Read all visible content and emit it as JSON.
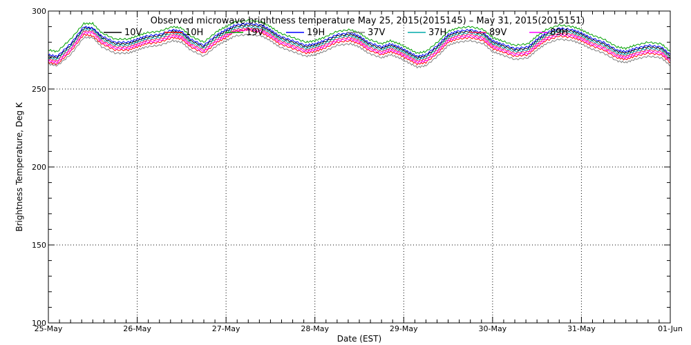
{
  "chart_data": {
    "type": "line",
    "title": "Observed microwave brightness temperature May 25, 2015(2015145) – May 31, 2015(2015151)",
    "xlabel": "Date (EST)",
    "ylabel": "Brightness Temperature, Deg K",
    "ylim": [
      100,
      300
    ],
    "y_ticks": [
      100,
      150,
      200,
      250,
      300
    ],
    "xlim": [
      "2015-05-25",
      "2015-06-01"
    ],
    "x_ticks": [
      "25-May",
      "26-May",
      "27-May",
      "28-May",
      "29-May",
      "30-May",
      "31-May",
      "01-Jun"
    ],
    "grid": true,
    "legend_position": "top",
    "x": [
      0.0,
      0.1,
      0.25,
      0.4,
      0.5,
      0.6,
      0.75,
      0.9,
      1.0,
      1.1,
      1.25,
      1.4,
      1.5,
      1.6,
      1.75,
      1.9,
      2.0,
      2.1,
      2.25,
      2.4,
      2.5,
      2.6,
      2.75,
      2.9,
      3.0,
      3.1,
      3.25,
      3.4,
      3.5,
      3.6,
      3.75,
      3.85,
      3.95,
      4.05,
      4.15,
      4.25,
      4.4,
      4.5,
      4.6,
      4.75,
      4.9,
      5.0,
      5.1,
      5.25,
      5.4,
      5.5,
      5.6,
      5.75,
      5.9,
      6.0,
      6.1,
      6.25,
      6.4,
      6.5,
      6.6,
      6.75,
      6.9,
      7.0
    ],
    "series": [
      {
        "name": "10V",
        "color": "#000000",
        "values": [
          271,
          270,
          278,
          289,
          289,
          283,
          279,
          279,
          281,
          283,
          284,
          287,
          286,
          281,
          277,
          284,
          287,
          290,
          291,
          290,
          287,
          283,
          280,
          277,
          278,
          280,
          284,
          285,
          283,
          279,
          276,
          278,
          276,
          273,
          270,
          271,
          278,
          284,
          286,
          287,
          285,
          280,
          278,
          275,
          276,
          281,
          285,
          288,
          287,
          285,
          282,
          279,
          274,
          273,
          275,
          277,
          276,
          271
        ]
      },
      {
        "name": "10H",
        "color": "#ff0000",
        "values": [
          267,
          266,
          274,
          285,
          284,
          279,
          275,
          275,
          277,
          279,
          280,
          283,
          282,
          277,
          273,
          280,
          283,
          287,
          288,
          286,
          283,
          279,
          276,
          273,
          274,
          276,
          280,
          281,
          279,
          275,
          272,
          274,
          272,
          269,
          266,
          267,
          274,
          280,
          282,
          283,
          281,
          276,
          274,
          271,
          272,
          277,
          281,
          284,
          283,
          281,
          278,
          275,
          270,
          269,
          271,
          273,
          272,
          267
        ]
      },
      {
        "name": "19V",
        "color": "#00a000",
        "values": [
          275,
          274,
          282,
          292,
          292,
          286,
          282,
          282,
          284,
          286,
          287,
          290,
          289,
          284,
          280,
          287,
          290,
          293,
          294,
          293,
          290,
          286,
          283,
          280,
          281,
          283,
          287,
          288,
          286,
          282,
          279,
          281,
          279,
          276,
          273,
          274,
          281,
          287,
          289,
          290,
          288,
          283,
          281,
          278,
          279,
          284,
          288,
          291,
          290,
          288,
          285,
          282,
          277,
          276,
          278,
          280,
          279,
          274
        ]
      },
      {
        "name": "19H",
        "color": "#0000ff",
        "values": [
          272,
          271,
          279,
          290,
          289,
          284,
          280,
          280,
          282,
          284,
          285,
          288,
          287,
          282,
          278,
          285,
          288,
          291,
          292,
          291,
          288,
          284,
          281,
          278,
          279,
          281,
          285,
          286,
          284,
          280,
          277,
          279,
          277,
          274,
          271,
          272,
          279,
          285,
          287,
          288,
          286,
          281,
          279,
          276,
          277,
          282,
          286,
          289,
          288,
          286,
          283,
          280,
          275,
          274,
          276,
          278,
          277,
          272
        ]
      },
      {
        "name": "37V",
        "color": "#808080",
        "values": [
          266,
          265,
          272,
          283,
          283,
          277,
          273,
          273,
          275,
          277,
          278,
          281,
          280,
          275,
          271,
          278,
          281,
          284,
          285,
          284,
          281,
          277,
          274,
          271,
          272,
          274,
          278,
          279,
          277,
          273,
          270,
          272,
          270,
          267,
          264,
          265,
          272,
          278,
          280,
          281,
          279,
          274,
          272,
          269,
          270,
          275,
          279,
          282,
          281,
          279,
          276,
          273,
          268,
          267,
          269,
          271,
          270,
          265
        ]
      },
      {
        "name": "37H",
        "color": "#00aaaa",
        "values": [
          270,
          269,
          277,
          288,
          288,
          282,
          278,
          278,
          280,
          282,
          283,
          286,
          285,
          280,
          276,
          283,
          286,
          289,
          290,
          289,
          286,
          282,
          279,
          276,
          277,
          279,
          283,
          284,
          282,
          278,
          275,
          277,
          275,
          272,
          269,
          270,
          277,
          283,
          285,
          286,
          284,
          279,
          277,
          274,
          275,
          280,
          284,
          287,
          286,
          284,
          281,
          278,
          273,
          272,
          274,
          276,
          275,
          270
        ]
      },
      {
        "name": "89V",
        "color": "#ff2060",
        "values": [
          269,
          268,
          276,
          287,
          287,
          281,
          277,
          277,
          279,
          281,
          282,
          285,
          284,
          279,
          275,
          282,
          285,
          288,
          289,
          288,
          285,
          281,
          278,
          275,
          276,
          278,
          282,
          283,
          281,
          277,
          274,
          276,
          274,
          271,
          268,
          269,
          276,
          282,
          284,
          285,
          283,
          278,
          276,
          273,
          274,
          279,
          283,
          286,
          285,
          283,
          280,
          277,
          272,
          271,
          273,
          275,
          274,
          269
        ]
      },
      {
        "name": "89H",
        "color": "#ff00ff",
        "values": [
          268,
          267,
          275,
          286,
          286,
          280,
          276,
          276,
          278,
          280,
          281,
          284,
          283,
          278,
          274,
          281,
          284,
          287,
          288,
          287,
          284,
          280,
          277,
          274,
          275,
          277,
          281,
          282,
          280,
          276,
          273,
          275,
          273,
          270,
          267,
          268,
          275,
          281,
          283,
          284,
          282,
          277,
          275,
          272,
          273,
          278,
          282,
          285,
          284,
          282,
          279,
          276,
          271,
          270,
          272,
          274,
          273,
          268
        ]
      }
    ]
  }
}
